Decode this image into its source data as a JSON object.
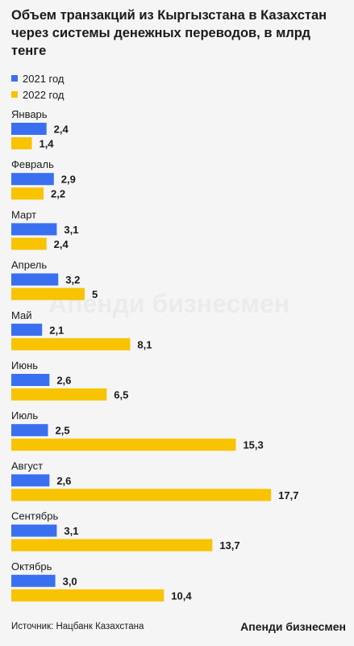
{
  "header": {
    "title": "Объем транзакций из Кыргызстана в Казахстан через системы денежных переводов, в млрд тенге"
  },
  "footer": {
    "source": "Источник: Нацбанк Казахстана",
    "brand": "Апенди бизнесмен"
  },
  "watermark": "Апенди бизнесмен",
  "colors": {
    "series_2021": "#3a6ff0",
    "series_2022": "#f8c300",
    "background": "#f5f5f5"
  },
  "chart_data": {
    "type": "bar",
    "orientation": "horizontal",
    "title": "Объем транзакций из Кыргызстана в Казахстан через системы денежных переводов, в млрд тенге",
    "categories": [
      "Январь",
      "Февраль",
      "Март",
      "Апрель",
      "Май",
      "Июнь",
      "Июль",
      "Август",
      "Сентябрь",
      "Октябрь"
    ],
    "series": [
      {
        "name": "2021 год",
        "values": [
          2.4,
          2.9,
          3.1,
          3.2,
          2.1,
          2.6,
          2.5,
          2.6,
          3.1,
          3.0
        ],
        "labels": [
          "2,4",
          "2,9",
          "3,1",
          "3,2",
          "2,1",
          "2,6",
          "2,5",
          "2,6",
          "3,1",
          "3,0"
        ]
      },
      {
        "name": "2022 год",
        "values": [
          1.4,
          2.2,
          2.4,
          5,
          8.1,
          6.5,
          15.3,
          17.7,
          13.7,
          10.4
        ],
        "labels": [
          "1,4",
          "2,2",
          "2,4",
          "5",
          "8,1",
          "6,5",
          "15,3",
          "17,7",
          "13,7",
          "10,4"
        ]
      }
    ],
    "legend": "top-left",
    "grid": false
  }
}
